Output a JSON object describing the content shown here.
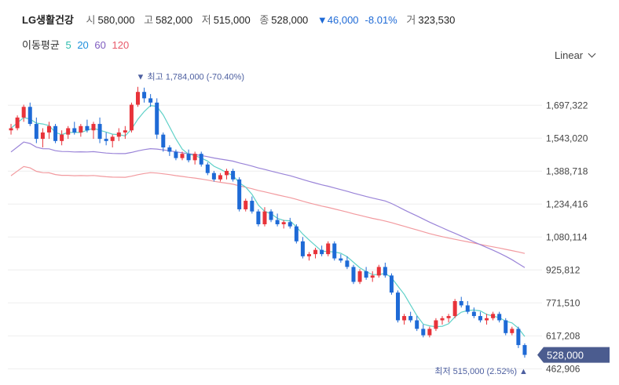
{
  "stock": {
    "name": "LG생활건강",
    "open_label": "시",
    "open": "580,000",
    "high_label": "고",
    "high": "582,000",
    "low_label": "저",
    "low": "515,000",
    "close_label": "종",
    "close": "528,000",
    "change": "▼46,000",
    "change_pct": "-8.01%",
    "volume_label": "거",
    "volume": "323,530"
  },
  "ma_legend": {
    "label": "이동평균",
    "periods": [
      {
        "text": "5",
        "color": "#2bbbad"
      },
      {
        "text": "20",
        "color": "#1e8fdc"
      },
      {
        "text": "60",
        "color": "#7e5bbf"
      },
      {
        "text": "120",
        "color": "#e85a6a"
      }
    ]
  },
  "scale_toggle": "Linear",
  "colors": {
    "up": "#e8333a",
    "down": "#1e6ad6",
    "ma5": "#5fd1c8",
    "ma60": "#9a84d8",
    "ma120": "#f29a9f",
    "price_tag": "#4b5c8f"
  },
  "chart_data": {
    "type": "candlestick",
    "ylim": [
      420000,
      1860000
    ],
    "y_ticks": [
      1697322,
      1543020,
      1388718,
      1234416,
      1080114,
      925812,
      771510,
      617208,
      462906
    ],
    "y_tick_labels": [
      "1,697,322",
      "1,543,020",
      "1,388,718",
      "1,234,416",
      "1,080,114",
      "925,812",
      "771,510",
      "617,208",
      "462,906"
    ],
    "current_price_label": "528,000",
    "current_price": 528000,
    "high_annotation": {
      "text": "▼ 최고 1,784,000 (-70.40%)",
      "value": 1784000
    },
    "low_annotation": {
      "text": "최저 515,000 (2.52%) ▲",
      "value": 515000
    },
    "candles": [
      [
        1580000,
        1610000,
        1560000,
        1590000
      ],
      [
        1590000,
        1650000,
        1580000,
        1640000
      ],
      [
        1640000,
        1700000,
        1620000,
        1690000
      ],
      [
        1690000,
        1710000,
        1600000,
        1610000
      ],
      [
        1610000,
        1640000,
        1520000,
        1540000
      ],
      [
        1540000,
        1590000,
        1500000,
        1570000
      ],
      [
        1570000,
        1620000,
        1540000,
        1600000
      ],
      [
        1600000,
        1610000,
        1520000,
        1530000
      ],
      [
        1530000,
        1580000,
        1510000,
        1560000
      ],
      [
        1560000,
        1600000,
        1540000,
        1590000
      ],
      [
        1590000,
        1620000,
        1560000,
        1570000
      ],
      [
        1570000,
        1610000,
        1550000,
        1600000
      ],
      [
        1600000,
        1630000,
        1570000,
        1580000
      ],
      [
        1580000,
        1620000,
        1540000,
        1610000
      ],
      [
        1610000,
        1640000,
        1520000,
        1540000
      ],
      [
        1540000,
        1570000,
        1510000,
        1530000
      ],
      [
        1530000,
        1560000,
        1500000,
        1550000
      ],
      [
        1550000,
        1590000,
        1530000,
        1570000
      ],
      [
        1570000,
        1600000,
        1540000,
        1580000
      ],
      [
        1580000,
        1710000,
        1570000,
        1700000
      ],
      [
        1700000,
        1784000,
        1690000,
        1760000
      ],
      [
        1760000,
        1780000,
        1710000,
        1730000
      ],
      [
        1730000,
        1750000,
        1690000,
        1710000
      ],
      [
        1710000,
        1730000,
        1540000,
        1560000
      ],
      [
        1560000,
        1570000,
        1480000,
        1500000
      ],
      [
        1500000,
        1510000,
        1460000,
        1480000
      ],
      [
        1480000,
        1490000,
        1440000,
        1450000
      ],
      [
        1450000,
        1480000,
        1440000,
        1470000
      ],
      [
        1470000,
        1490000,
        1430000,
        1440000
      ],
      [
        1440000,
        1480000,
        1420000,
        1470000
      ],
      [
        1470000,
        1480000,
        1410000,
        1420000
      ],
      [
        1420000,
        1430000,
        1370000,
        1380000
      ],
      [
        1380000,
        1390000,
        1340000,
        1350000
      ],
      [
        1350000,
        1380000,
        1340000,
        1370000
      ],
      [
        1370000,
        1400000,
        1350000,
        1390000
      ],
      [
        1390000,
        1400000,
        1340000,
        1350000
      ],
      [
        1350000,
        1360000,
        1200000,
        1210000
      ],
      [
        1210000,
        1260000,
        1200000,
        1250000
      ],
      [
        1250000,
        1270000,
        1190000,
        1200000
      ],
      [
        1200000,
        1210000,
        1130000,
        1140000
      ],
      [
        1140000,
        1220000,
        1130000,
        1200000
      ],
      [
        1200000,
        1210000,
        1150000,
        1160000
      ],
      [
        1160000,
        1190000,
        1130000,
        1140000
      ],
      [
        1140000,
        1160000,
        1120000,
        1150000
      ],
      [
        1150000,
        1170000,
        1120000,
        1130000
      ],
      [
        1130000,
        1140000,
        1050000,
        1060000
      ],
      [
        1060000,
        1080000,
        980000,
        990000
      ],
      [
        990000,
        1010000,
        970000,
        1000000
      ],
      [
        1000000,
        1030000,
        980000,
        1020000
      ],
      [
        1020000,
        1040000,
        990000,
        1000000
      ],
      [
        1000000,
        1060000,
        990000,
        1050000
      ],
      [
        1050000,
        1060000,
        970000,
        980000
      ],
      [
        980000,
        1000000,
        960000,
        970000
      ],
      [
        970000,
        990000,
        930000,
        940000
      ],
      [
        940000,
        950000,
        860000,
        870000
      ],
      [
        870000,
        930000,
        860000,
        920000
      ],
      [
        920000,
        940000,
        880000,
        890000
      ],
      [
        890000,
        920000,
        870000,
        900000
      ],
      [
        900000,
        950000,
        890000,
        940000
      ],
      [
        940000,
        960000,
        890000,
        900000
      ],
      [
        900000,
        910000,
        810000,
        820000
      ],
      [
        820000,
        830000,
        680000,
        690000
      ],
      [
        690000,
        720000,
        670000,
        710000
      ],
      [
        710000,
        730000,
        680000,
        690000
      ],
      [
        690000,
        710000,
        640000,
        650000
      ],
      [
        650000,
        670000,
        610000,
        620000
      ],
      [
        620000,
        660000,
        610000,
        650000
      ],
      [
        650000,
        700000,
        640000,
        690000
      ],
      [
        690000,
        710000,
        670000,
        700000
      ],
      [
        700000,
        720000,
        680000,
        710000
      ],
      [
        710000,
        790000,
        700000,
        780000
      ],
      [
        780000,
        800000,
        750000,
        760000
      ],
      [
        760000,
        780000,
        720000,
        730000
      ],
      [
        730000,
        750000,
        700000,
        710000
      ],
      [
        710000,
        730000,
        680000,
        690000
      ],
      [
        690000,
        720000,
        670000,
        700000
      ],
      [
        700000,
        730000,
        690000,
        720000
      ],
      [
        720000,
        730000,
        680000,
        690000
      ],
      [
        690000,
        700000,
        620000,
        630000
      ],
      [
        630000,
        660000,
        620000,
        650000
      ],
      [
        650000,
        660000,
        560000,
        574000
      ],
      [
        574000,
        582000,
        515000,
        528000
      ]
    ]
  }
}
